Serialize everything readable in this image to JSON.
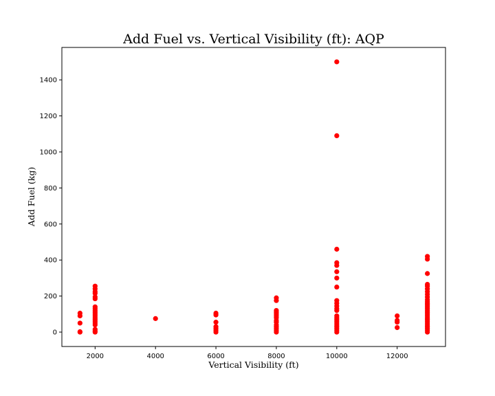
{
  "chart_data": {
    "type": "scatter",
    "title": "Add Fuel vs. Vertical Visibility (ft): AQP",
    "xlabel": "Vertical Visibility (ft)",
    "ylabel": "Add Fuel (kg)",
    "xlim": [
      900,
      13600
    ],
    "ylim": [
      -80,
      1580
    ],
    "xticks": [
      2000,
      4000,
      6000,
      8000,
      10000,
      12000
    ],
    "yticks": [
      0,
      200,
      400,
      600,
      800,
      1000,
      1200,
      1400
    ],
    "grid": false,
    "legend": "none",
    "marker_color": "#ff0000",
    "series": [
      {
        "points": [
          [
            1500,
            0
          ],
          [
            1500,
            2
          ],
          [
            1500,
            50
          ],
          [
            1500,
            90
          ],
          [
            1500,
            105
          ],
          [
            2000,
            0
          ],
          [
            2000,
            5
          ],
          [
            2000,
            15
          ],
          [
            2000,
            40
          ],
          [
            2000,
            50
          ],
          [
            2000,
            60
          ],
          [
            2000,
            70
          ],
          [
            2000,
            80
          ],
          [
            2000,
            90
          ],
          [
            2000,
            100
          ],
          [
            2000,
            110
          ],
          [
            2000,
            120
          ],
          [
            2000,
            130
          ],
          [
            2000,
            140
          ],
          [
            2000,
            185
          ],
          [
            2000,
            195
          ],
          [
            2000,
            215
          ],
          [
            2000,
            225
          ],
          [
            2000,
            240
          ],
          [
            2000,
            255
          ],
          [
            4000,
            75
          ],
          [
            6000,
            0
          ],
          [
            6000,
            10
          ],
          [
            6000,
            20
          ],
          [
            6000,
            30
          ],
          [
            6000,
            55
          ],
          [
            6000,
            95
          ],
          [
            6000,
            105
          ],
          [
            8000,
            0
          ],
          [
            8000,
            10
          ],
          [
            8000,
            20
          ],
          [
            8000,
            30
          ],
          [
            8000,
            40
          ],
          [
            8000,
            55
          ],
          [
            8000,
            65
          ],
          [
            8000,
            80
          ],
          [
            8000,
            90
          ],
          [
            8000,
            100
          ],
          [
            8000,
            110
          ],
          [
            8000,
            120
          ],
          [
            8000,
            175
          ],
          [
            8000,
            190
          ],
          [
            10000,
            0
          ],
          [
            10000,
            10
          ],
          [
            10000,
            20
          ],
          [
            10000,
            30
          ],
          [
            10000,
            40
          ],
          [
            10000,
            50
          ],
          [
            10000,
            60
          ],
          [
            10000,
            70
          ],
          [
            10000,
            80
          ],
          [
            10000,
            90
          ],
          [
            10000,
            120
          ],
          [
            10000,
            130
          ],
          [
            10000,
            145
          ],
          [
            10000,
            160
          ],
          [
            10000,
            175
          ],
          [
            10000,
            250
          ],
          [
            10000,
            300
          ],
          [
            10000,
            335
          ],
          [
            10000,
            370
          ],
          [
            10000,
            385
          ],
          [
            10000,
            460
          ],
          [
            10000,
            1090
          ],
          [
            10000,
            1500
          ],
          [
            12000,
            25
          ],
          [
            12000,
            55
          ],
          [
            12000,
            65
          ],
          [
            12000,
            90
          ],
          [
            13000,
            0
          ],
          [
            13000,
            10
          ],
          [
            13000,
            20
          ],
          [
            13000,
            30
          ],
          [
            13000,
            40
          ],
          [
            13000,
            50
          ],
          [
            13000,
            60
          ],
          [
            13000,
            70
          ],
          [
            13000,
            80
          ],
          [
            13000,
            90
          ],
          [
            13000,
            100
          ],
          [
            13000,
            110
          ],
          [
            13000,
            120
          ],
          [
            13000,
            130
          ],
          [
            13000,
            140
          ],
          [
            13000,
            150
          ],
          [
            13000,
            160
          ],
          [
            13000,
            170
          ],
          [
            13000,
            180
          ],
          [
            13000,
            195
          ],
          [
            13000,
            210
          ],
          [
            13000,
            225
          ],
          [
            13000,
            240
          ],
          [
            13000,
            255
          ],
          [
            13000,
            265
          ],
          [
            13000,
            325
          ],
          [
            13000,
            405
          ],
          [
            13000,
            420
          ]
        ]
      }
    ]
  }
}
